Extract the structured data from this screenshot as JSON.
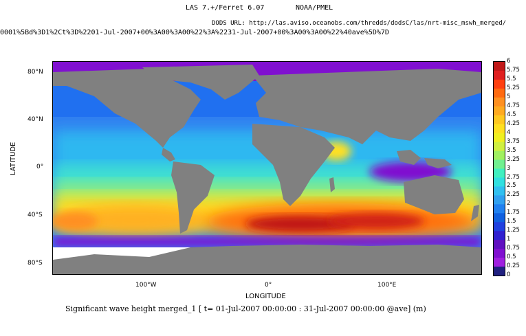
{
  "header": {
    "title": "LAS 7.+/Ferret 6.07",
    "org": "NOAA/PMEL",
    "dods": "DODS URL: http://las.aviso.oceanobs.com/thredds/dodsC/las/nrt-misc_mswh_merged/",
    "url": "0001%5Bd%3D1%2Ct%3D%2201-Jul-2007+00%3A00%3A00%22%3A%2231-Jul-2007+00%3A00%3A00%22%40ave%5D%7D"
  },
  "map": {
    "lat_ticks": [
      "80°N",
      "40°N",
      "0°",
      "40°S",
      "80°S"
    ],
    "lon_ticks": [
      "100°W",
      "0°",
      "100°E"
    ],
    "xlabel": "LONGITUDE",
    "ylabel": "LATITUDE",
    "land_color": "#808080",
    "nodata_color": "#ffffff"
  },
  "caption": "Significant wave height merged_1 [ t= 01-Jul-2007 00:00:00 : 31-Jul-2007 00:00:00 @ave] (m)",
  "colorbar": {
    "labels": [
      "6",
      "5.75",
      "5.5",
      "5.25",
      "5",
      "4.75",
      "4.5",
      "4.25",
      "4",
      "3.75",
      "3.5",
      "3.25",
      "3",
      "2.75",
      "2.5",
      "2.25",
      "2",
      "1.75",
      "1.5",
      "1.25",
      "1",
      "0.75",
      "0.5",
      "0.25",
      "0"
    ],
    "colors": [
      "#c01818",
      "#e02020",
      "#ff4010",
      "#ff6a10",
      "#ff9020",
      "#ffaa20",
      "#ffc820",
      "#ffe020",
      "#f0f020",
      "#d0f040",
      "#a0f060",
      "#70f090",
      "#40f0c0",
      "#30e0e0",
      "#30c0f0",
      "#30a0f0",
      "#2080f0",
      "#1060e0",
      "#2040e0",
      "#3020d0",
      "#6010c0",
      "#8010d0",
      "#a020e0",
      "#202080"
    ]
  }
}
